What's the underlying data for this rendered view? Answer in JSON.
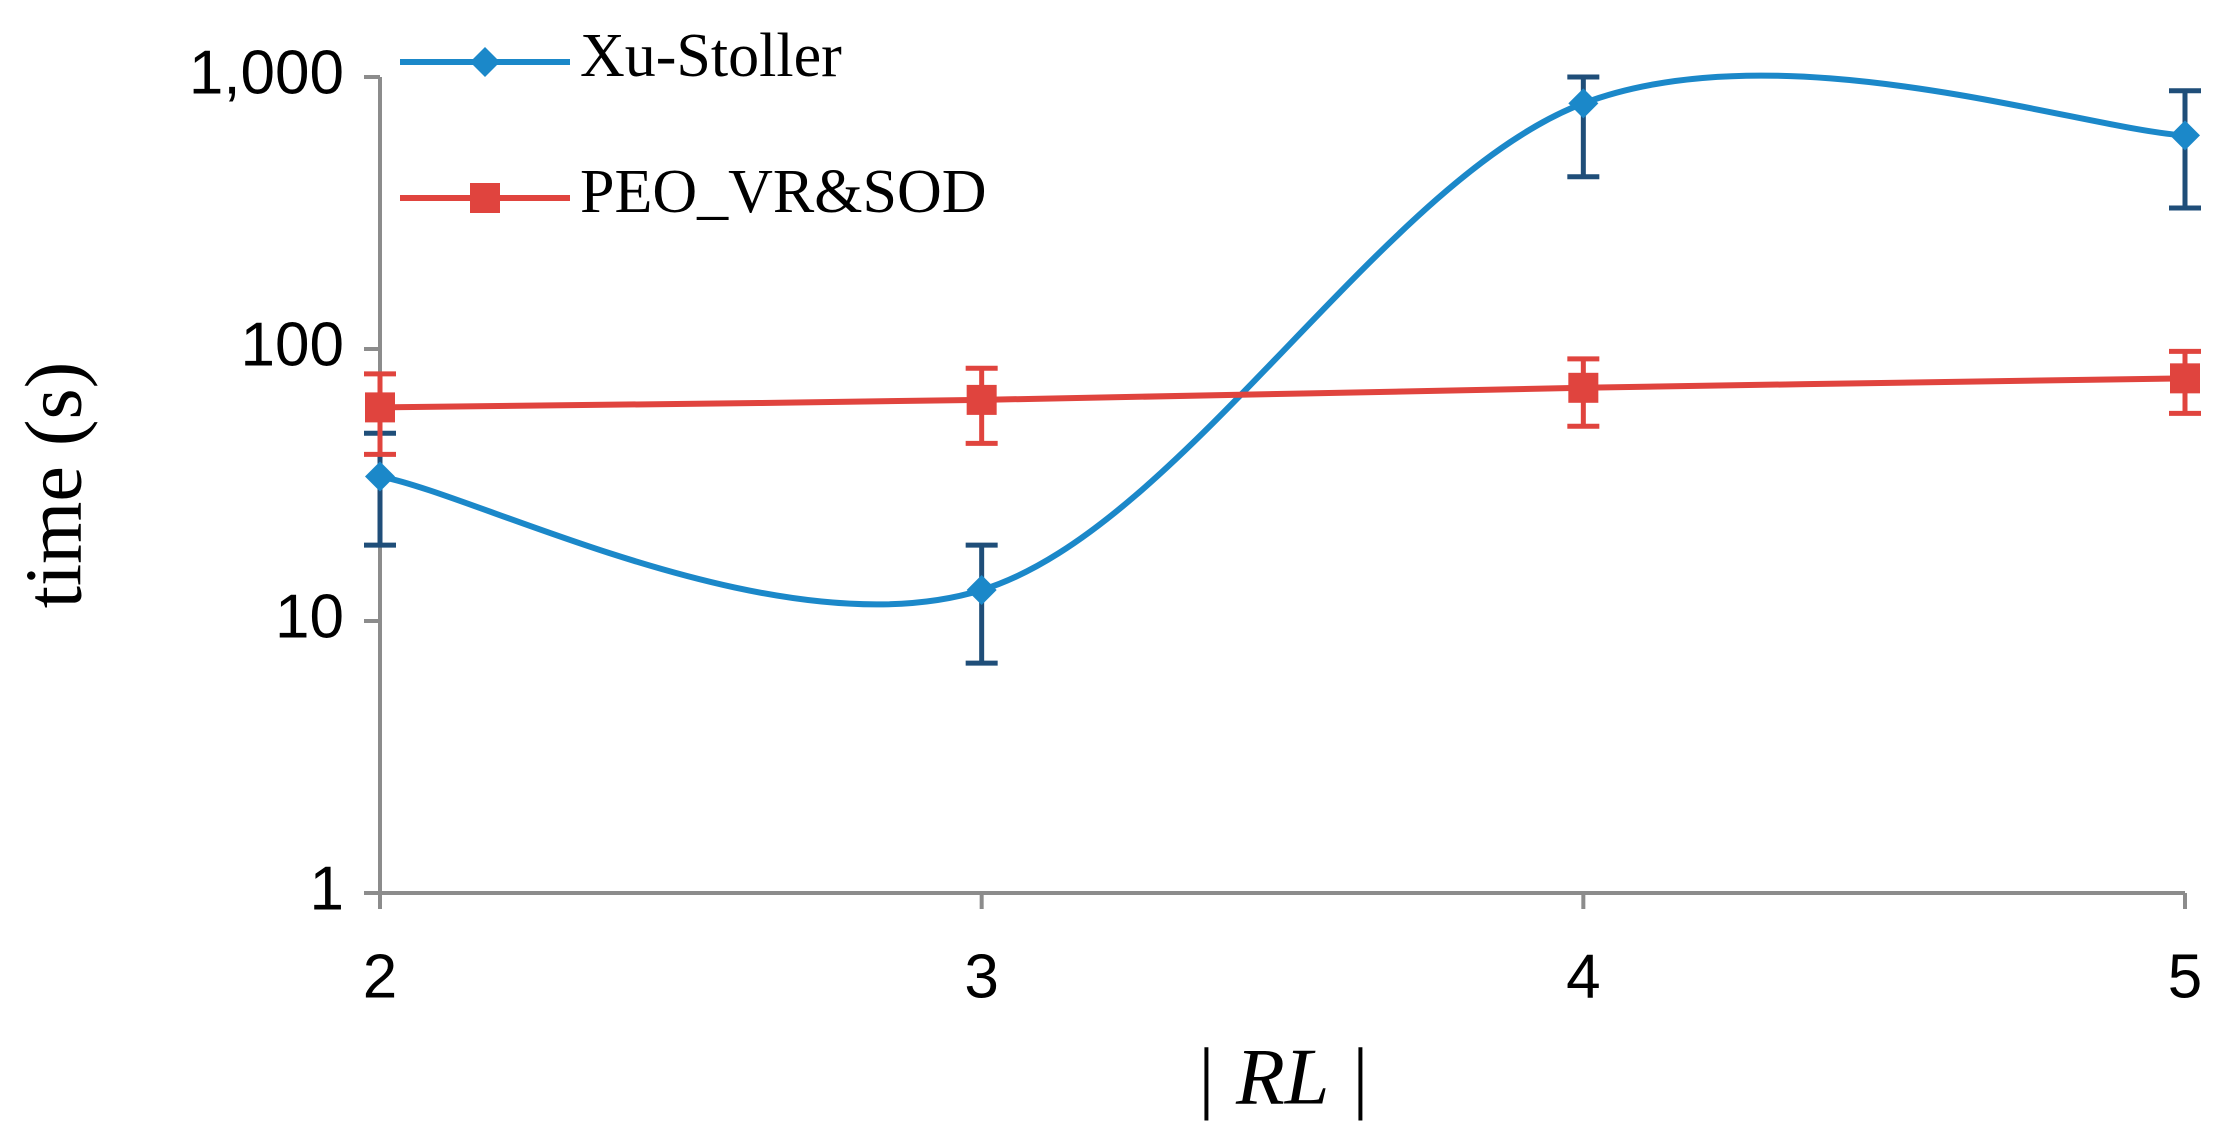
{
  "chart_data": {
    "type": "line",
    "x_label": "| RL |",
    "y_label": "time (s)",
    "x": [
      2,
      3,
      4,
      5
    ],
    "xlim": [
      2,
      5
    ],
    "xticks": [
      2,
      3,
      4,
      5
    ],
    "ylim": [
      1,
      1000
    ],
    "yticks": [
      1,
      10,
      100,
      {
        "value": 1000,
        "label": "1,000"
      }
    ],
    "log_y": true,
    "grid": false,
    "smooth": true,
    "legend": "top-left",
    "series": [
      {
        "name": "Xu-Stoller",
        "color": "#1b88c9",
        "error_color": "#1f4e79",
        "marker": "diamond",
        "values": [
          34,
          13,
          800,
          610
        ],
        "errors": [
          15,
          6,
          370,
          280
        ]
      },
      {
        "name": "PEO_VR&SOD",
        "color": "#e0443e",
        "error_color": "#e0443e",
        "marker": "square",
        "values": [
          61,
          65,
          72,
          78
        ],
        "errors": [
          20,
          20,
          20,
          20
        ]
      }
    ]
  }
}
